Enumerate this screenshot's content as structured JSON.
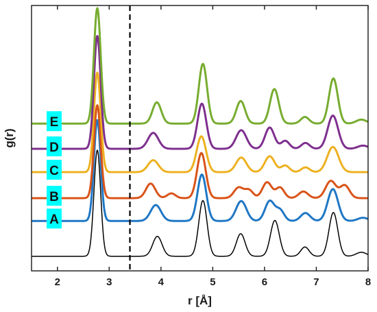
{
  "chart_data": {
    "type": "line",
    "xlabel": "r [Å]",
    "ylabel": "g(r)",
    "xlim": [
      1.5,
      8.0
    ],
    "xticks": [
      2,
      3,
      4,
      5,
      6,
      7,
      8
    ],
    "xtick_labels": [
      "2",
      "3",
      "4",
      "5",
      "6",
      "7",
      "8"
    ],
    "ylim": [
      0,
      1
    ],
    "grid": false,
    "vertical_reference_line": {
      "x": 3.4,
      "style": "dashed",
      "color": "#000000"
    },
    "baseline_peaks": [
      {
        "r": 2.77,
        "h": 0.4,
        "w": 0.065
      },
      {
        "r": 3.93,
        "h": 0.075,
        "w": 0.09
      },
      {
        "r": 4.81,
        "h": 0.21,
        "w": 0.08
      },
      {
        "r": 5.54,
        "h": 0.085,
        "w": 0.085
      },
      {
        "r": 6.2,
        "h": 0.135,
        "w": 0.085
      },
      {
        "r": 6.78,
        "h": 0.035,
        "w": 0.08
      },
      {
        "r": 7.33,
        "h": 0.165,
        "w": 0.085
      },
      {
        "r": 7.87,
        "h": 0.015,
        "w": 0.1
      }
    ],
    "series": [
      {
        "name": "",
        "color": "#000000",
        "stroke_width": 1.5,
        "offset": 0.055,
        "peaks": []
      },
      {
        "name": "A",
        "color": "#1f77c4",
        "stroke_width": 3,
        "offset": 0.188,
        "peaks": [
          {
            "r": 2.77,
            "h": 0.38,
            "w": 0.065
          },
          {
            "r": 3.9,
            "h": 0.06,
            "w": 0.1
          },
          {
            "r": 4.79,
            "h": 0.175,
            "w": 0.085
          },
          {
            "r": 5.55,
            "h": 0.075,
            "w": 0.1
          },
          {
            "r": 6.1,
            "h": 0.075,
            "w": 0.09
          },
          {
            "r": 6.3,
            "h": 0.04,
            "w": 0.08
          },
          {
            "r": 6.79,
            "h": 0.03,
            "w": 0.09
          },
          {
            "r": 7.32,
            "h": 0.12,
            "w": 0.1
          },
          {
            "r": 7.9,
            "h": 0.012,
            "w": 0.1
          }
        ]
      },
      {
        "name": "B",
        "color": "#d95319",
        "stroke_width": 3,
        "offset": 0.274,
        "peaks": [
          {
            "r": 2.77,
            "h": 0.35,
            "w": 0.065
          },
          {
            "r": 3.8,
            "h": 0.055,
            "w": 0.09
          },
          {
            "r": 4.2,
            "h": 0.018,
            "w": 0.08
          },
          {
            "r": 4.78,
            "h": 0.17,
            "w": 0.085
          },
          {
            "r": 5.5,
            "h": 0.04,
            "w": 0.09
          },
          {
            "r": 5.7,
            "h": 0.03,
            "w": 0.08
          },
          {
            "r": 6.05,
            "h": 0.06,
            "w": 0.09
          },
          {
            "r": 6.3,
            "h": 0.04,
            "w": 0.08
          },
          {
            "r": 6.75,
            "h": 0.025,
            "w": 0.09
          },
          {
            "r": 7.28,
            "h": 0.065,
            "w": 0.1
          },
          {
            "r": 7.55,
            "h": 0.048,
            "w": 0.09
          }
        ]
      },
      {
        "name": "C",
        "color": "#edb120",
        "stroke_width": 3,
        "offset": 0.372,
        "peaks": [
          {
            "r": 2.77,
            "h": 0.375,
            "w": 0.065
          },
          {
            "r": 3.85,
            "h": 0.045,
            "w": 0.1
          },
          {
            "r": 4.78,
            "h": 0.135,
            "w": 0.09
          },
          {
            "r": 5.55,
            "h": 0.055,
            "w": 0.1
          },
          {
            "r": 6.1,
            "h": 0.06,
            "w": 0.095
          },
          {
            "r": 6.4,
            "h": 0.025,
            "w": 0.08
          },
          {
            "r": 6.79,
            "h": 0.018,
            "w": 0.08
          },
          {
            "r": 7.32,
            "h": 0.095,
            "w": 0.11
          }
        ]
      },
      {
        "name": "D",
        "color": "#7e2f8e",
        "stroke_width": 3,
        "offset": 0.46,
        "peaks": [
          {
            "r": 2.77,
            "h": 0.425,
            "w": 0.065
          },
          {
            "r": 3.85,
            "h": 0.06,
            "w": 0.1
          },
          {
            "r": 4.79,
            "h": 0.17,
            "w": 0.085
          },
          {
            "r": 5.55,
            "h": 0.07,
            "w": 0.1
          },
          {
            "r": 6.1,
            "h": 0.08,
            "w": 0.09
          },
          {
            "r": 6.4,
            "h": 0.03,
            "w": 0.08
          },
          {
            "r": 6.79,
            "h": 0.022,
            "w": 0.08
          },
          {
            "r": 7.32,
            "h": 0.125,
            "w": 0.1
          },
          {
            "r": 7.9,
            "h": 0.012,
            "w": 0.1
          }
        ]
      },
      {
        "name": "E",
        "color": "#77ac30",
        "stroke_width": 3,
        "offset": 0.555,
        "peaks": [
          {
            "r": 2.77,
            "h": 0.435,
            "w": 0.065
          },
          {
            "r": 3.92,
            "h": 0.08,
            "w": 0.085
          },
          {
            "r": 4.81,
            "h": 0.225,
            "w": 0.08
          },
          {
            "r": 5.54,
            "h": 0.085,
            "w": 0.085
          },
          {
            "r": 6.19,
            "h": 0.13,
            "w": 0.085
          },
          {
            "r": 6.78,
            "h": 0.025,
            "w": 0.08
          },
          {
            "r": 7.33,
            "h": 0.17,
            "w": 0.085
          },
          {
            "r": 7.87,
            "h": 0.015,
            "w": 0.1
          }
        ]
      }
    ],
    "curve_labels": [
      {
        "text": "A",
        "series": "A",
        "bg_color": "#00ffff"
      },
      {
        "text": "B",
        "series": "B",
        "bg_color": "#00ffff"
      },
      {
        "text": "C",
        "series": "C",
        "bg_color": "#00ffff"
      },
      {
        "text": "D",
        "series": "D",
        "bg_color": "#00ffff"
      },
      {
        "text": "E",
        "series": "E",
        "bg_color": "#00ffff"
      }
    ]
  }
}
